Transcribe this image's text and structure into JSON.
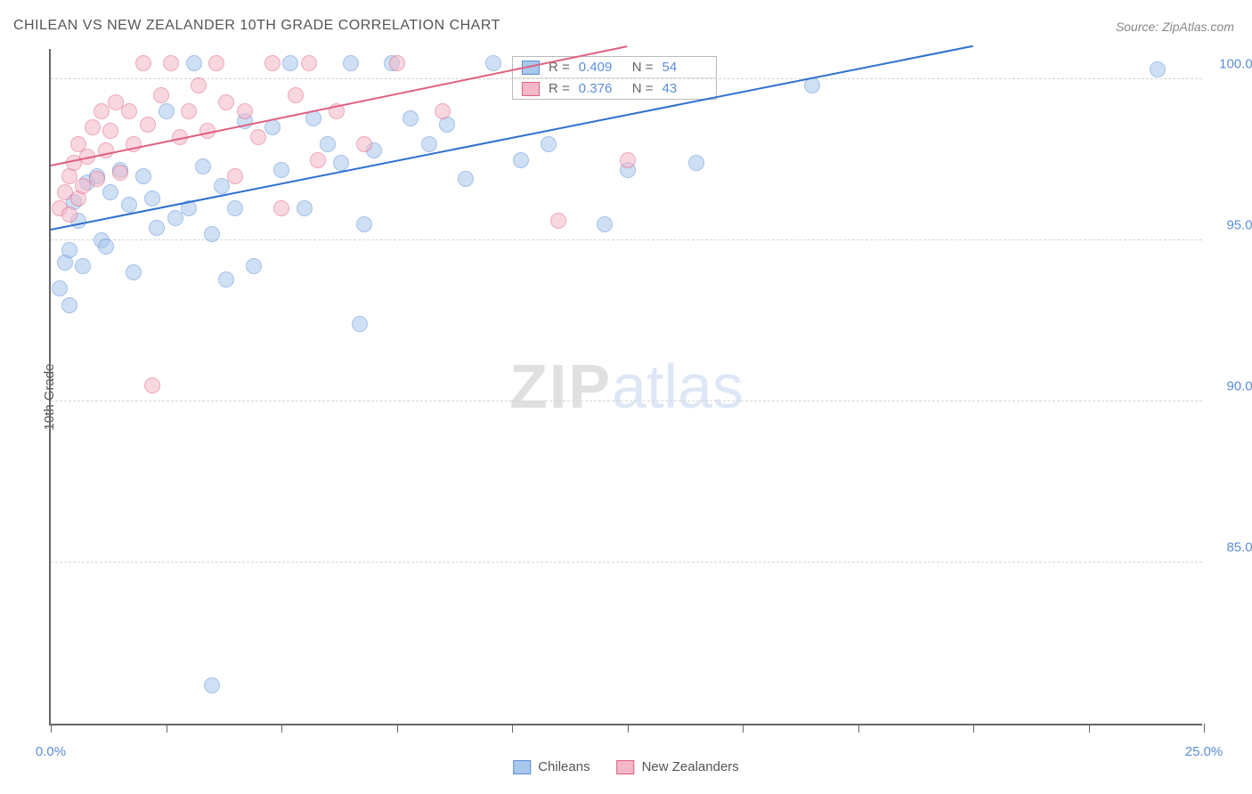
{
  "title": "CHILEAN VS NEW ZEALANDER 10TH GRADE CORRELATION CHART",
  "source": "Source: ZipAtlas.com",
  "ylabel": "10th Grade",
  "watermark_a": "ZIP",
  "watermark_b": "atlas",
  "chart": {
    "type": "scatter",
    "xlim": [
      0,
      25
    ],
    "ylim": [
      80,
      101
    ],
    "xticks": [
      0,
      2.5,
      5,
      7.5,
      10,
      12.5,
      15,
      17.5,
      20,
      22.5,
      25
    ],
    "xtick_labels": {
      "0": "0.0%",
      "25": "25.0%"
    },
    "yticks": [
      85,
      90,
      95,
      100
    ],
    "ytick_labels": {
      "85": "85.0%",
      "90": "90.0%",
      "95": "95.0%",
      "100": "100.0%"
    },
    "grid_color": "#d5d5d5",
    "axis_color": "#666666",
    "background_color": "#ffffff",
    "point_radius": 9,
    "point_opacity": 0.55,
    "series": [
      {
        "name": "Chileans",
        "fill": "#a8c8ec",
        "stroke": "#5b8dd6",
        "r_value": "0.409",
        "n_value": "54",
        "trend": {
          "x1": 0,
          "y1": 95.3,
          "x2": 20,
          "y2": 101,
          "color": "#2d6fd0",
          "width": 2
        },
        "points": [
          [
            0.2,
            93.5
          ],
          [
            0.3,
            94.3
          ],
          [
            0.4,
            93.0
          ],
          [
            0.4,
            94.7
          ],
          [
            0.5,
            96.2
          ],
          [
            0.6,
            95.6
          ],
          [
            0.7,
            94.2
          ],
          [
            0.8,
            96.8
          ],
          [
            1.0,
            97.0
          ],
          [
            1.1,
            95.0
          ],
          [
            1.2,
            94.8
          ],
          [
            1.3,
            96.5
          ],
          [
            1.5,
            97.2
          ],
          [
            1.7,
            96.1
          ],
          [
            1.8,
            94.0
          ],
          [
            2.0,
            97.0
          ],
          [
            2.2,
            96.3
          ],
          [
            2.3,
            95.4
          ],
          [
            2.5,
            99.0
          ],
          [
            2.7,
            95.7
          ],
          [
            3.0,
            96.0
          ],
          [
            3.1,
            100.5
          ],
          [
            3.3,
            97.3
          ],
          [
            3.5,
            95.2
          ],
          [
            3.7,
            96.7
          ],
          [
            3.8,
            93.8
          ],
          [
            4.0,
            96.0
          ],
          [
            4.2,
            98.7
          ],
          [
            4.4,
            94.2
          ],
          [
            4.8,
            98.5
          ],
          [
            5.0,
            97.2
          ],
          [
            5.2,
            100.5
          ],
          [
            5.5,
            96.0
          ],
          [
            5.7,
            98.8
          ],
          [
            6.0,
            98.0
          ],
          [
            6.3,
            97.4
          ],
          [
            6.5,
            100.5
          ],
          [
            6.7,
            92.4
          ],
          [
            6.8,
            95.5
          ],
          [
            7.0,
            97.8
          ],
          [
            7.4,
            100.5
          ],
          [
            7.8,
            98.8
          ],
          [
            8.2,
            98.0
          ],
          [
            8.6,
            98.6
          ],
          [
            9.0,
            96.9
          ],
          [
            9.6,
            100.5
          ],
          [
            10.2,
            97.5
          ],
          [
            10.8,
            98.0
          ],
          [
            12.0,
            95.5
          ],
          [
            12.5,
            97.2
          ],
          [
            14.0,
            97.4
          ],
          [
            16.5,
            99.8
          ],
          [
            24.0,
            100.3
          ],
          [
            3.5,
            81.2
          ]
        ]
      },
      {
        "name": "New Zealanders",
        "fill": "#f4b8c8",
        "stroke": "#e0607f",
        "r_value": "0.376",
        "n_value": "43",
        "trend": {
          "x1": 0,
          "y1": 97.3,
          "x2": 12.5,
          "y2": 101,
          "color": "#e0607f",
          "width": 2
        },
        "points": [
          [
            0.2,
            96.0
          ],
          [
            0.3,
            96.5
          ],
          [
            0.4,
            97.0
          ],
          [
            0.4,
            95.8
          ],
          [
            0.5,
            97.4
          ],
          [
            0.6,
            96.3
          ],
          [
            0.6,
            98.0
          ],
          [
            0.7,
            96.7
          ],
          [
            0.8,
            97.6
          ],
          [
            0.9,
            98.5
          ],
          [
            1.0,
            96.9
          ],
          [
            1.1,
            99.0
          ],
          [
            1.2,
            97.8
          ],
          [
            1.3,
            98.4
          ],
          [
            1.4,
            99.3
          ],
          [
            1.5,
            97.1
          ],
          [
            1.7,
            99.0
          ],
          [
            1.8,
            98.0
          ],
          [
            2.0,
            100.5
          ],
          [
            2.1,
            98.6
          ],
          [
            2.2,
            90.5
          ],
          [
            2.4,
            99.5
          ],
          [
            2.6,
            100.5
          ],
          [
            2.8,
            98.2
          ],
          [
            3.0,
            99.0
          ],
          [
            3.2,
            99.8
          ],
          [
            3.4,
            98.4
          ],
          [
            3.6,
            100.5
          ],
          [
            3.8,
            99.3
          ],
          [
            4.0,
            97.0
          ],
          [
            4.2,
            99.0
          ],
          [
            4.5,
            98.2
          ],
          [
            4.8,
            100.5
          ],
          [
            5.0,
            96.0
          ],
          [
            5.3,
            99.5
          ],
          [
            5.6,
            100.5
          ],
          [
            5.8,
            97.5
          ],
          [
            6.2,
            99.0
          ],
          [
            6.8,
            98.0
          ],
          [
            7.5,
            100.5
          ],
          [
            8.5,
            99.0
          ],
          [
            11.0,
            95.6
          ],
          [
            12.5,
            97.5
          ]
        ]
      }
    ]
  },
  "legend": {
    "items": [
      {
        "label": "Chileans",
        "fill": "#a8c8ec",
        "stroke": "#5b8dd6"
      },
      {
        "label": "New Zealanders",
        "fill": "#f4b8c8",
        "stroke": "#e0607f"
      }
    ]
  },
  "stats_labels": {
    "r": "R =",
    "n": "N ="
  }
}
